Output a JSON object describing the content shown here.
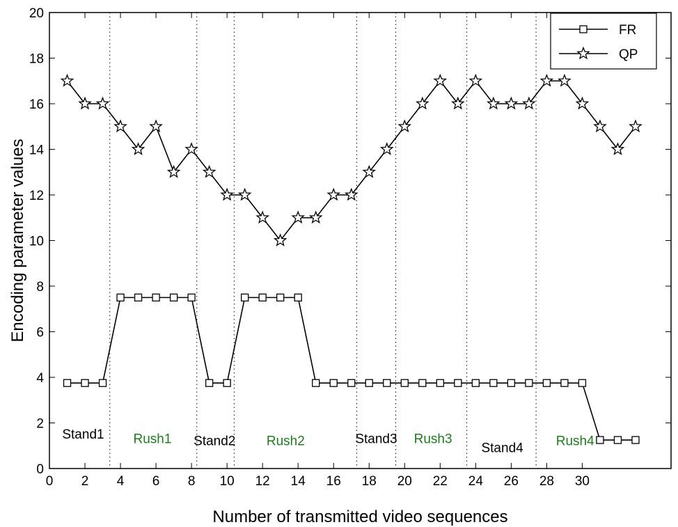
{
  "chart_data": {
    "type": "line",
    "title": "",
    "xlabel": "Number of transmitted video sequences",
    "ylabel": "Encoding parameter values",
    "xlim": [
      0,
      35
    ],
    "ylim": [
      0,
      20
    ],
    "x_ticks": [
      0,
      2,
      4,
      6,
      8,
      10,
      12,
      14,
      16,
      18,
      20,
      22,
      24,
      26,
      28,
      30
    ],
    "y_ticks": [
      0,
      2,
      4,
      6,
      8,
      10,
      12,
      14,
      16,
      18,
      20
    ],
    "grid": false,
    "legend_position": "top-right",
    "series": [
      {
        "name": "FR",
        "marker": "square",
        "x": [
          1,
          2,
          3,
          4,
          5,
          6,
          7,
          8,
          9,
          10,
          11,
          12,
          13,
          14,
          15,
          16,
          17,
          18,
          19,
          20,
          21,
          22,
          23,
          24,
          25,
          26,
          27,
          28,
          29,
          30,
          31,
          32,
          33
        ],
        "values": [
          3.75,
          3.75,
          3.75,
          7.5,
          7.5,
          7.5,
          7.5,
          7.5,
          3.75,
          3.75,
          7.5,
          7.5,
          7.5,
          7.5,
          3.75,
          3.75,
          3.75,
          3.75,
          3.75,
          3.75,
          3.75,
          3.75,
          3.75,
          3.75,
          3.75,
          3.75,
          3.75,
          3.75,
          3.75,
          3.75,
          1.25,
          1.25,
          1.25
        ]
      },
      {
        "name": "QP",
        "marker": "star",
        "x": [
          1,
          2,
          3,
          4,
          5,
          6,
          7,
          8,
          9,
          10,
          11,
          12,
          13,
          14,
          15,
          16,
          17,
          18,
          19,
          20,
          21,
          22,
          23,
          24,
          25,
          26,
          27,
          28,
          29,
          30,
          31,
          32,
          33
        ],
        "values": [
          17,
          16,
          16,
          15,
          14,
          15,
          13,
          14,
          13,
          12,
          12,
          11,
          10,
          11,
          11,
          12,
          12,
          13,
          14,
          15,
          16,
          17,
          16,
          17,
          16,
          16,
          16,
          17,
          17,
          16,
          15,
          14,
          15
        ]
      }
    ],
    "separators": [
      3.4,
      8.3,
      10.4,
      17.3,
      19.5,
      23.5,
      27.4
    ],
    "regions": [
      {
        "label": "Stand1",
        "x": 1.9,
        "y": 1.5,
        "color": "#000000"
      },
      {
        "label": "Rush1",
        "x": 5.8,
        "y": 1.3,
        "color": "#1a7f1a"
      },
      {
        "label": "Stand2",
        "x": 9.3,
        "y": 1.2,
        "color": "#000000"
      },
      {
        "label": "Rush2",
        "x": 13.3,
        "y": 1.2,
        "color": "#1a7f1a"
      },
      {
        "label": "Stand3",
        "x": 18.4,
        "y": 1.3,
        "color": "#000000"
      },
      {
        "label": "Rush3",
        "x": 21.6,
        "y": 1.3,
        "color": "#1a7f1a"
      },
      {
        "label": "Stand4",
        "x": 25.5,
        "y": 0.9,
        "color": "#000000"
      },
      {
        "label": "Rush4",
        "x": 29.6,
        "y": 1.2,
        "color": "#1a7f1a"
      }
    ]
  }
}
